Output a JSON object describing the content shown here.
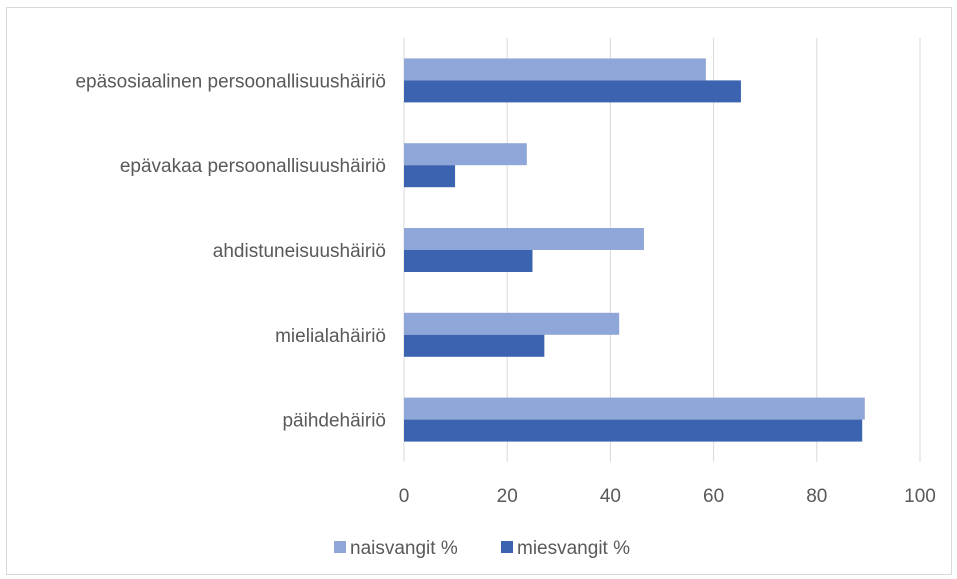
{
  "chart_data": {
    "type": "bar",
    "orientation": "horizontal",
    "categories": [
      "epäsosiaalinen persoonallisuushäiriö",
      "epävakaa persoonallisuushäiriö",
      "ahdistuneisuushäiriö",
      "mielialahäiriö",
      "päihdehäiriö"
    ],
    "series": [
      {
        "name": "naisvangit %",
        "values": [
          58.5,
          23.8,
          46.5,
          41.7,
          89.3
        ],
        "color": "#8ea6d8"
      },
      {
        "name": "miesvangit %",
        "values": [
          65.3,
          9.9,
          24.9,
          27.2,
          88.8
        ],
        "color": "#3c63b0"
      }
    ],
    "xlim": [
      0,
      100
    ],
    "xticks": [
      "0",
      "20",
      "40",
      "60",
      "80",
      "100"
    ],
    "grid": true,
    "legend_position": "bottom"
  }
}
